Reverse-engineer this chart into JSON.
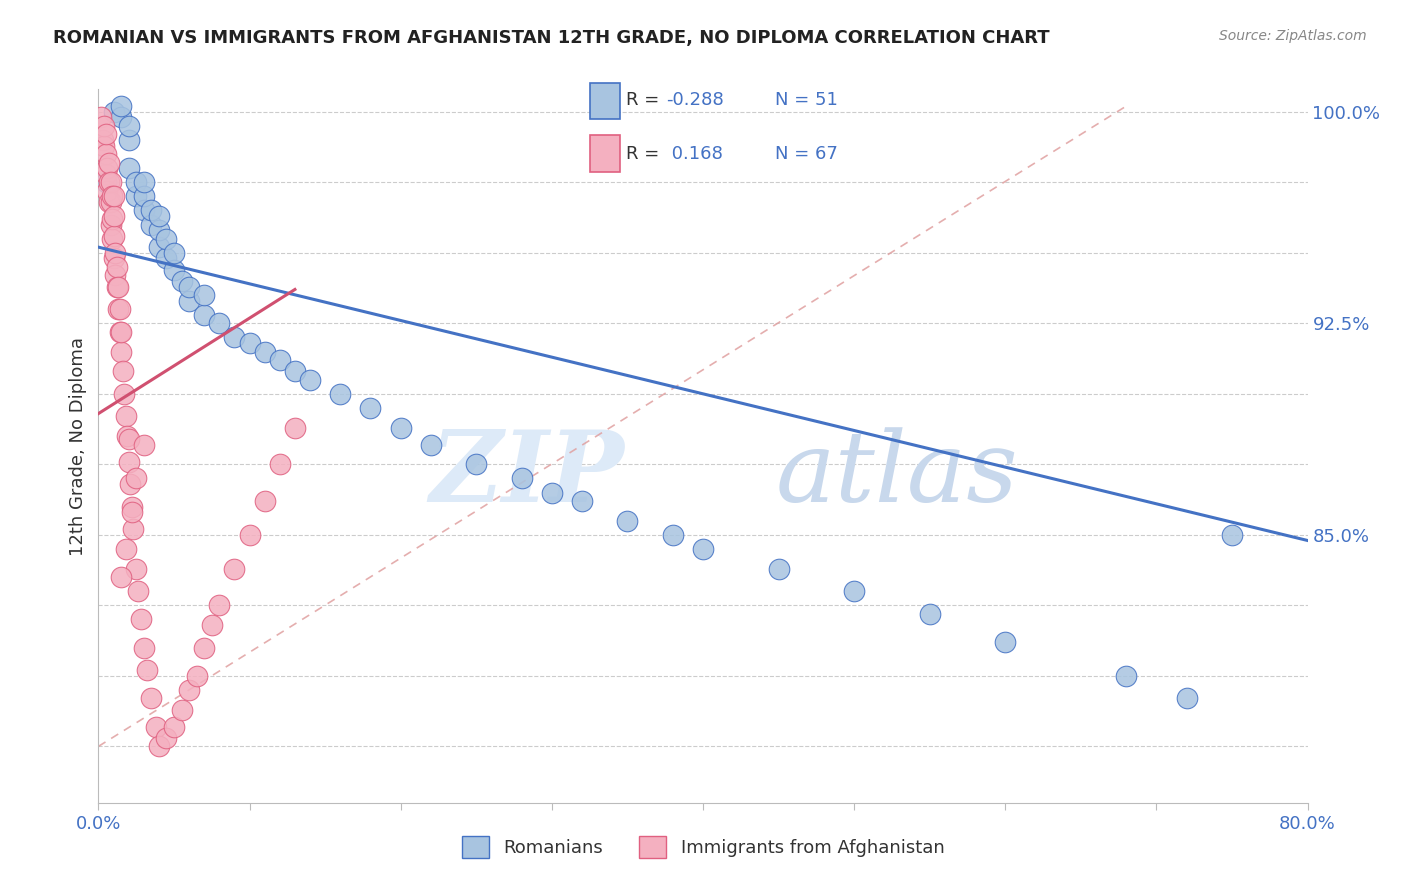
{
  "title": "ROMANIAN VS IMMIGRANTS FROM AFGHANISTAN 12TH GRADE, NO DIPLOMA CORRELATION CHART",
  "source": "Source: ZipAtlas.com",
  "ylabel": "12th Grade, No Diploma",
  "x_min": 0.0,
  "x_max": 0.8,
  "y_min": 0.755,
  "y_max": 1.008,
  "blue_R": -0.288,
  "blue_N": 51,
  "pink_R": 0.168,
  "pink_N": 67,
  "blue_color": "#a8c4e0",
  "pink_color": "#f4b0c0",
  "blue_edge_color": "#4472c4",
  "pink_edge_color": "#e06080",
  "blue_line_color": "#4472c4",
  "pink_line_color": "#d05070",
  "dash_line_color": "#e0a0a0",
  "legend_labels": [
    "Romanians",
    "Immigrants from Afghanistan"
  ],
  "y_grid_ticks": [
    0.775,
    0.8,
    0.825,
    0.85,
    0.875,
    0.9,
    0.925,
    0.95,
    0.975,
    1.0
  ],
  "y_label_ticks": [
    0.85,
    0.925,
    1.0
  ],
  "y_label_values": [
    "85.0%",
    "92.5%",
    "100.0%"
  ],
  "blue_scatter_x": [
    0.005,
    0.01,
    0.015,
    0.015,
    0.02,
    0.02,
    0.02,
    0.025,
    0.025,
    0.03,
    0.03,
    0.03,
    0.035,
    0.035,
    0.04,
    0.04,
    0.04,
    0.045,
    0.045,
    0.05,
    0.05,
    0.055,
    0.06,
    0.06,
    0.07,
    0.07,
    0.08,
    0.09,
    0.1,
    0.11,
    0.12,
    0.13,
    0.14,
    0.16,
    0.18,
    0.2,
    0.22,
    0.25,
    0.28,
    0.3,
    0.32,
    0.35,
    0.38,
    0.4,
    0.45,
    0.5,
    0.55,
    0.6,
    0.68,
    0.72,
    0.75
  ],
  "blue_scatter_y": [
    0.975,
    1.0,
    0.998,
    1.002,
    0.98,
    0.99,
    0.995,
    0.97,
    0.975,
    0.965,
    0.97,
    0.975,
    0.96,
    0.965,
    0.952,
    0.958,
    0.963,
    0.948,
    0.955,
    0.944,
    0.95,
    0.94,
    0.933,
    0.938,
    0.928,
    0.935,
    0.925,
    0.92,
    0.918,
    0.915,
    0.912,
    0.908,
    0.905,
    0.9,
    0.895,
    0.888,
    0.882,
    0.875,
    0.87,
    0.865,
    0.862,
    0.855,
    0.85,
    0.845,
    0.838,
    0.83,
    0.822,
    0.812,
    0.8,
    0.792,
    0.85
  ],
  "pink_scatter_x": [
    0.002,
    0.003,
    0.004,
    0.004,
    0.005,
    0.005,
    0.005,
    0.006,
    0.006,
    0.007,
    0.007,
    0.007,
    0.008,
    0.008,
    0.008,
    0.009,
    0.009,
    0.009,
    0.01,
    0.01,
    0.01,
    0.01,
    0.011,
    0.011,
    0.012,
    0.012,
    0.013,
    0.013,
    0.014,
    0.014,
    0.015,
    0.015,
    0.016,
    0.017,
    0.018,
    0.019,
    0.02,
    0.02,
    0.021,
    0.022,
    0.023,
    0.025,
    0.026,
    0.028,
    0.03,
    0.032,
    0.035,
    0.038,
    0.04,
    0.045,
    0.05,
    0.055,
    0.06,
    0.065,
    0.07,
    0.075,
    0.08,
    0.09,
    0.1,
    0.11,
    0.12,
    0.13,
    0.015,
    0.018,
    0.022,
    0.025,
    0.03
  ],
  "pink_scatter_y": [
    0.998,
    0.99,
    0.988,
    0.995,
    0.978,
    0.985,
    0.992,
    0.972,
    0.98,
    0.968,
    0.975,
    0.982,
    0.96,
    0.968,
    0.975,
    0.955,
    0.962,
    0.97,
    0.948,
    0.956,
    0.963,
    0.97,
    0.942,
    0.95,
    0.938,
    0.945,
    0.93,
    0.938,
    0.922,
    0.93,
    0.915,
    0.922,
    0.908,
    0.9,
    0.892,
    0.885,
    0.876,
    0.884,
    0.868,
    0.86,
    0.852,
    0.838,
    0.83,
    0.82,
    0.81,
    0.802,
    0.792,
    0.782,
    0.775,
    0.778,
    0.782,
    0.788,
    0.795,
    0.8,
    0.81,
    0.818,
    0.825,
    0.838,
    0.85,
    0.862,
    0.875,
    0.888,
    0.835,
    0.845,
    0.858,
    0.87,
    0.882
  ]
}
